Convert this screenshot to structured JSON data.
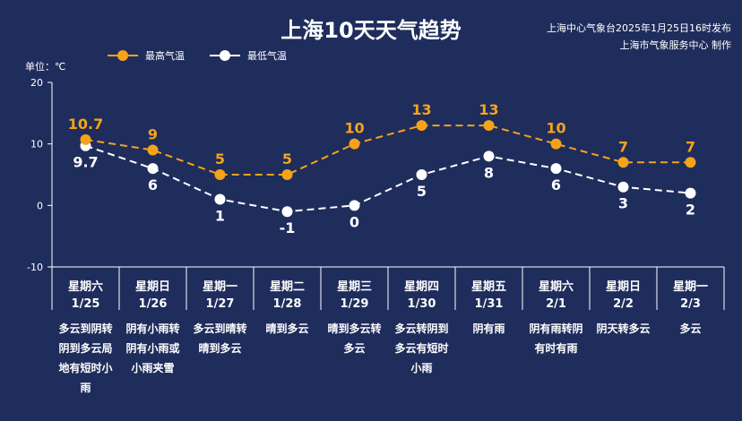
{
  "header": {
    "title": "上海10天天气趋势",
    "publisher_line1": "上海中心气象台2025年1月25日16时发布",
    "publisher_line2": "上海市气象服务中心 制作"
  },
  "legend": {
    "high_label": "最高气温",
    "low_label": "最低气温"
  },
  "unit_label": "单位：℃",
  "colors": {
    "background": "#1f2d5c",
    "high": "#f5a31a",
    "low": "#ffffff",
    "axis": "#ffffff"
  },
  "chart_data": {
    "type": "line",
    "x": [
      "1/25",
      "1/26",
      "1/27",
      "1/28",
      "1/29",
      "1/30",
      "1/31",
      "2/1",
      "2/2",
      "2/3"
    ],
    "weekdays": [
      "星期六",
      "星期日",
      "星期一",
      "星期二",
      "星期三",
      "星期四",
      "星期五",
      "星期六",
      "星期日",
      "星期一"
    ],
    "weather": [
      [
        "多云到阴转",
        "阴到多云局",
        "地有短时小",
        "雨"
      ],
      [
        "阴有小雨转",
        "阴有小雨或",
        "小雨夹雪"
      ],
      [
        "多云到晴转",
        "晴到多云"
      ],
      [
        "晴到多云"
      ],
      [
        "晴到多云转",
        "多云"
      ],
      [
        "多云转阴到",
        "多云有短时",
        "小雨"
      ],
      [
        "阴有雨"
      ],
      [
        "阴有雨转阴",
        "有时有雨"
      ],
      [
        "阴天转多云"
      ],
      [
        "多云"
      ]
    ],
    "series": [
      {
        "name": "最高气温",
        "values": [
          10.7,
          9,
          5,
          5,
          10,
          13,
          13,
          10,
          7,
          7
        ],
        "labels": [
          "10.7",
          "9",
          "5",
          "5",
          "10",
          "13",
          "13",
          "10",
          "7",
          "7"
        ]
      },
      {
        "name": "最低气温",
        "values": [
          9.7,
          6,
          1,
          -1,
          0,
          5,
          8,
          6,
          3,
          2
        ],
        "labels": [
          "9.7",
          "6",
          "1",
          "-1",
          "0",
          "5",
          "8",
          "6",
          "3",
          "2"
        ]
      }
    ],
    "ylim": [
      -10,
      20
    ],
    "yticks": [
      "20",
      "10",
      "0",
      "-10"
    ],
    "ytick_values": [
      20,
      10,
      0,
      -10
    ]
  }
}
